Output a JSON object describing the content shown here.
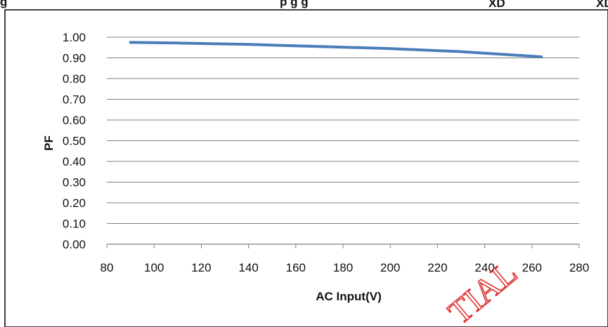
{
  "page": {
    "title_visible_fragments": {
      "lead": "g",
      "middle": "p      g   g",
      "sub1": "XD",
      "sub2": "XD"
    },
    "watermark_text": "TIAL",
    "colors": {
      "series_line": "#4a7ebb",
      "grid": "#7f7f7f",
      "frame": "#000000",
      "watermark": "#e03030"
    }
  },
  "chart_data": {
    "type": "line",
    "title": "",
    "xlabel": "AC Input(V)",
    "ylabel": "PF",
    "xlim": [
      80,
      280
    ],
    "ylim": [
      0.0,
      1.0
    ],
    "x_ticks": [
      "80",
      "100",
      "120",
      "140",
      "160",
      "180",
      "200",
      "220",
      "240",
      "260",
      "280"
    ],
    "y_ticks": [
      "0.00",
      "0.10",
      "0.20",
      "0.30",
      "0.40",
      "0.50",
      "0.60",
      "0.70",
      "0.80",
      "0.90",
      "1.00"
    ],
    "grid": "horizontal",
    "legend": "none",
    "series": [
      {
        "x": [
          90,
          110,
          140,
          180,
          200,
          230,
          264
        ],
        "y": [
          0.975,
          0.972,
          0.965,
          0.952,
          0.945,
          0.93,
          0.905
        ]
      }
    ]
  }
}
